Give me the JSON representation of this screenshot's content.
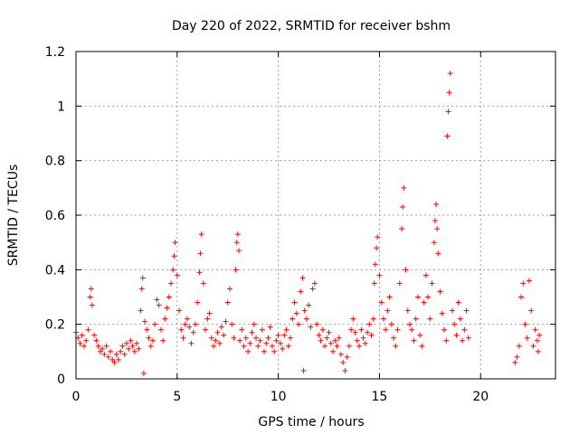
{
  "chart_data": {
    "type": "scatter",
    "title": "Day 220 of 2022, SRMTID for receiver bshm",
    "xlabel": "GPS time / hours",
    "ylabel": "SRMTID / TECUs",
    "xlim": [
      0,
      23.7
    ],
    "ylim": [
      0,
      1.2
    ],
    "x_ticks": [
      0,
      5,
      10,
      15,
      20
    ],
    "y_ticks": [
      0,
      0.2,
      0.4,
      0.6,
      0.8,
      1,
      1.2
    ],
    "x_tick_labels": [
      "0",
      "5",
      "10",
      "15",
      "20"
    ],
    "y_tick_labels": [
      "0",
      "0.2",
      "0.4",
      "0.6",
      "0.8",
      "1",
      "1.2"
    ],
    "grid": true,
    "marker": "+",
    "marker_color": "#ff0000",
    "series": [
      {
        "name": "SRMTID",
        "points": [
          [
            0.0,
            0.17
          ],
          [
            0.1,
            0.15
          ],
          [
            0.2,
            0.13
          ],
          [
            0.3,
            0.16
          ],
          [
            0.4,
            0.12
          ],
          [
            0.5,
            0.14
          ],
          [
            0.6,
            0.18
          ],
          [
            0.7,
            0.3
          ],
          [
            0.75,
            0.33
          ],
          [
            0.8,
            0.27
          ],
          [
            0.9,
            0.16
          ],
          [
            1.0,
            0.14
          ],
          [
            1.1,
            0.12
          ],
          [
            1.2,
            0.1
          ],
          [
            1.3,
            0.11
          ],
          [
            1.4,
            0.09
          ],
          [
            1.5,
            0.12
          ],
          [
            1.6,
            0.08
          ],
          [
            1.7,
            0.1
          ],
          [
            1.8,
            0.07
          ],
          [
            1.9,
            0.06
          ],
          [
            2.0,
            0.09
          ],
          [
            2.1,
            0.07
          ],
          [
            2.2,
            0.1
          ],
          [
            2.3,
            0.12
          ],
          [
            2.4,
            0.09
          ],
          [
            2.5,
            0.13
          ],
          [
            2.6,
            0.11
          ],
          [
            2.7,
            0.14
          ],
          [
            2.8,
            0.12
          ],
          [
            2.9,
            0.1
          ],
          [
            3.0,
            0.13
          ],
          [
            3.1,
            0.11
          ],
          [
            3.2,
            0.25
          ],
          [
            3.25,
            0.33
          ],
          [
            3.3,
            0.37
          ],
          [
            3.35,
            0.02
          ],
          [
            3.4,
            0.21
          ],
          [
            3.5,
            0.18
          ],
          [
            3.6,
            0.15
          ],
          [
            3.7,
            0.12
          ],
          [
            3.8,
            0.14
          ],
          [
            3.9,
            0.2
          ],
          [
            4.0,
            0.29
          ],
          [
            4.1,
            0.27
          ],
          [
            4.2,
            0.18
          ],
          [
            4.3,
            0.14
          ],
          [
            4.4,
            0.22
          ],
          [
            4.5,
            0.26
          ],
          [
            4.6,
            0.3
          ],
          [
            4.7,
            0.35
          ],
          [
            4.8,
            0.4
          ],
          [
            4.85,
            0.45
          ],
          [
            4.9,
            0.5
          ],
          [
            5.0,
            0.38
          ],
          [
            5.1,
            0.25
          ],
          [
            5.2,
            0.18
          ],
          [
            5.3,
            0.15
          ],
          [
            5.4,
            0.2
          ],
          [
            5.5,
            0.22
          ],
          [
            5.6,
            0.19
          ],
          [
            5.7,
            0.13
          ],
          [
            5.8,
            0.17
          ],
          [
            5.9,
            0.2
          ],
          [
            6.0,
            0.28
          ],
          [
            6.1,
            0.39
          ],
          [
            6.15,
            0.46
          ],
          [
            6.2,
            0.53
          ],
          [
            6.3,
            0.35
          ],
          [
            6.4,
            0.18
          ],
          [
            6.5,
            0.22
          ],
          [
            6.6,
            0.24
          ],
          [
            6.7,
            0.15
          ],
          [
            6.8,
            0.12
          ],
          [
            6.9,
            0.14
          ],
          [
            7.0,
            0.17
          ],
          [
            7.1,
            0.13
          ],
          [
            7.2,
            0.19
          ],
          [
            7.3,
            0.16
          ],
          [
            7.4,
            0.21
          ],
          [
            7.5,
            0.28
          ],
          [
            7.6,
            0.33
          ],
          [
            7.7,
            0.2
          ],
          [
            7.8,
            0.15
          ],
          [
            7.9,
            0.4
          ],
          [
            7.95,
            0.5
          ],
          [
            8.0,
            0.53
          ],
          [
            8.05,
            0.47
          ],
          [
            8.1,
            0.14
          ],
          [
            8.2,
            0.18
          ],
          [
            8.3,
            0.12
          ],
          [
            8.4,
            0.15
          ],
          [
            8.5,
            0.1
          ],
          [
            8.6,
            0.13
          ],
          [
            8.7,
            0.17
          ],
          [
            8.8,
            0.2
          ],
          [
            8.9,
            0.15
          ],
          [
            9.0,
            0.12
          ],
          [
            9.1,
            0.14
          ],
          [
            9.2,
            0.18
          ],
          [
            9.3,
            0.1
          ],
          [
            9.4,
            0.13
          ],
          [
            9.5,
            0.15
          ],
          [
            9.6,
            0.19
          ],
          [
            9.7,
            0.12
          ],
          [
            9.8,
            0.1
          ],
          [
            9.9,
            0.14
          ],
          [
            10.0,
            0.16
          ],
          [
            10.1,
            0.13
          ],
          [
            10.2,
            0.11
          ],
          [
            10.3,
            0.16
          ],
          [
            10.4,
            0.18
          ],
          [
            10.5,
            0.12
          ],
          [
            10.6,
            0.15
          ],
          [
            10.7,
            0.22
          ],
          [
            10.8,
            0.28
          ],
          [
            10.9,
            0.24
          ],
          [
            11.0,
            0.2
          ],
          [
            11.1,
            0.32
          ],
          [
            11.2,
            0.37
          ],
          [
            11.25,
            0.03
          ],
          [
            11.3,
            0.25
          ],
          [
            11.4,
            0.22
          ],
          [
            11.5,
            0.27
          ],
          [
            11.6,
            0.19
          ],
          [
            11.7,
            0.33
          ],
          [
            11.8,
            0.35
          ],
          [
            11.9,
            0.2
          ],
          [
            12.0,
            0.16
          ],
          [
            12.1,
            0.14
          ],
          [
            12.2,
            0.18
          ],
          [
            12.3,
            0.12
          ],
          [
            12.4,
            0.15
          ],
          [
            12.5,
            0.17
          ],
          [
            12.6,
            0.13
          ],
          [
            12.7,
            0.1
          ],
          [
            12.8,
            0.14
          ],
          [
            12.9,
            0.12
          ],
          [
            13.0,
            0.15
          ],
          [
            13.1,
            0.09
          ],
          [
            13.2,
            0.06
          ],
          [
            13.3,
            0.03
          ],
          [
            13.4,
            0.08
          ],
          [
            13.5,
            0.12
          ],
          [
            13.6,
            0.18
          ],
          [
            13.7,
            0.22
          ],
          [
            13.8,
            0.17
          ],
          [
            13.9,
            0.14
          ],
          [
            14.0,
            0.12
          ],
          [
            14.1,
            0.18
          ],
          [
            14.2,
            0.15
          ],
          [
            14.3,
            0.13
          ],
          [
            14.4,
            0.17
          ],
          [
            14.5,
            0.2
          ],
          [
            14.6,
            0.16
          ],
          [
            14.7,
            0.22
          ],
          [
            14.75,
            0.35
          ],
          [
            14.8,
            0.42
          ],
          [
            14.85,
            0.48
          ],
          [
            14.9,
            0.52
          ],
          [
            15.0,
            0.38
          ],
          [
            15.1,
            0.28
          ],
          [
            15.2,
            0.22
          ],
          [
            15.3,
            0.18
          ],
          [
            15.4,
            0.25
          ],
          [
            15.5,
            0.3
          ],
          [
            15.6,
            0.2
          ],
          [
            15.7,
            0.15
          ],
          [
            15.8,
            0.12
          ],
          [
            15.9,
            0.18
          ],
          [
            16.0,
            0.35
          ],
          [
            16.1,
            0.55
          ],
          [
            16.15,
            0.63
          ],
          [
            16.2,
            0.7
          ],
          [
            16.3,
            0.4
          ],
          [
            16.4,
            0.25
          ],
          [
            16.5,
            0.2
          ],
          [
            16.6,
            0.18
          ],
          [
            16.7,
            0.14
          ],
          [
            16.8,
            0.22
          ],
          [
            16.9,
            0.3
          ],
          [
            17.0,
            0.16
          ],
          [
            17.1,
            0.12
          ],
          [
            17.2,
            0.28
          ],
          [
            17.3,
            0.38
          ],
          [
            17.4,
            0.3
          ],
          [
            17.5,
            0.22
          ],
          [
            17.6,
            0.35
          ],
          [
            17.7,
            0.5
          ],
          [
            17.75,
            0.58
          ],
          [
            17.8,
            0.64
          ],
          [
            17.85,
            0.55
          ],
          [
            17.9,
            0.46
          ],
          [
            18.0,
            0.32
          ],
          [
            18.1,
            0.24
          ],
          [
            18.2,
            0.18
          ],
          [
            18.3,
            0.14
          ],
          [
            18.35,
            0.89
          ],
          [
            18.4,
            0.98
          ],
          [
            18.45,
            1.05
          ],
          [
            18.5,
            1.12
          ],
          [
            18.6,
            0.25
          ],
          [
            18.7,
            0.2
          ],
          [
            18.8,
            0.16
          ],
          [
            18.9,
            0.28
          ],
          [
            19.0,
            0.22
          ],
          [
            19.1,
            0.14
          ],
          [
            19.2,
            0.18
          ],
          [
            19.3,
            0.25
          ],
          [
            19.4,
            0.15
          ],
          [
            21.7,
            0.06
          ],
          [
            21.8,
            0.08
          ],
          [
            21.9,
            0.12
          ],
          [
            22.0,
            0.3
          ],
          [
            22.1,
            0.35
          ],
          [
            22.2,
            0.2
          ],
          [
            22.3,
            0.15
          ],
          [
            22.4,
            0.36
          ],
          [
            22.5,
            0.25
          ],
          [
            22.6,
            0.12
          ],
          [
            22.7,
            0.18
          ],
          [
            22.8,
            0.14
          ],
          [
            22.85,
            0.1
          ],
          [
            22.9,
            0.16
          ]
        ]
      }
    ]
  }
}
